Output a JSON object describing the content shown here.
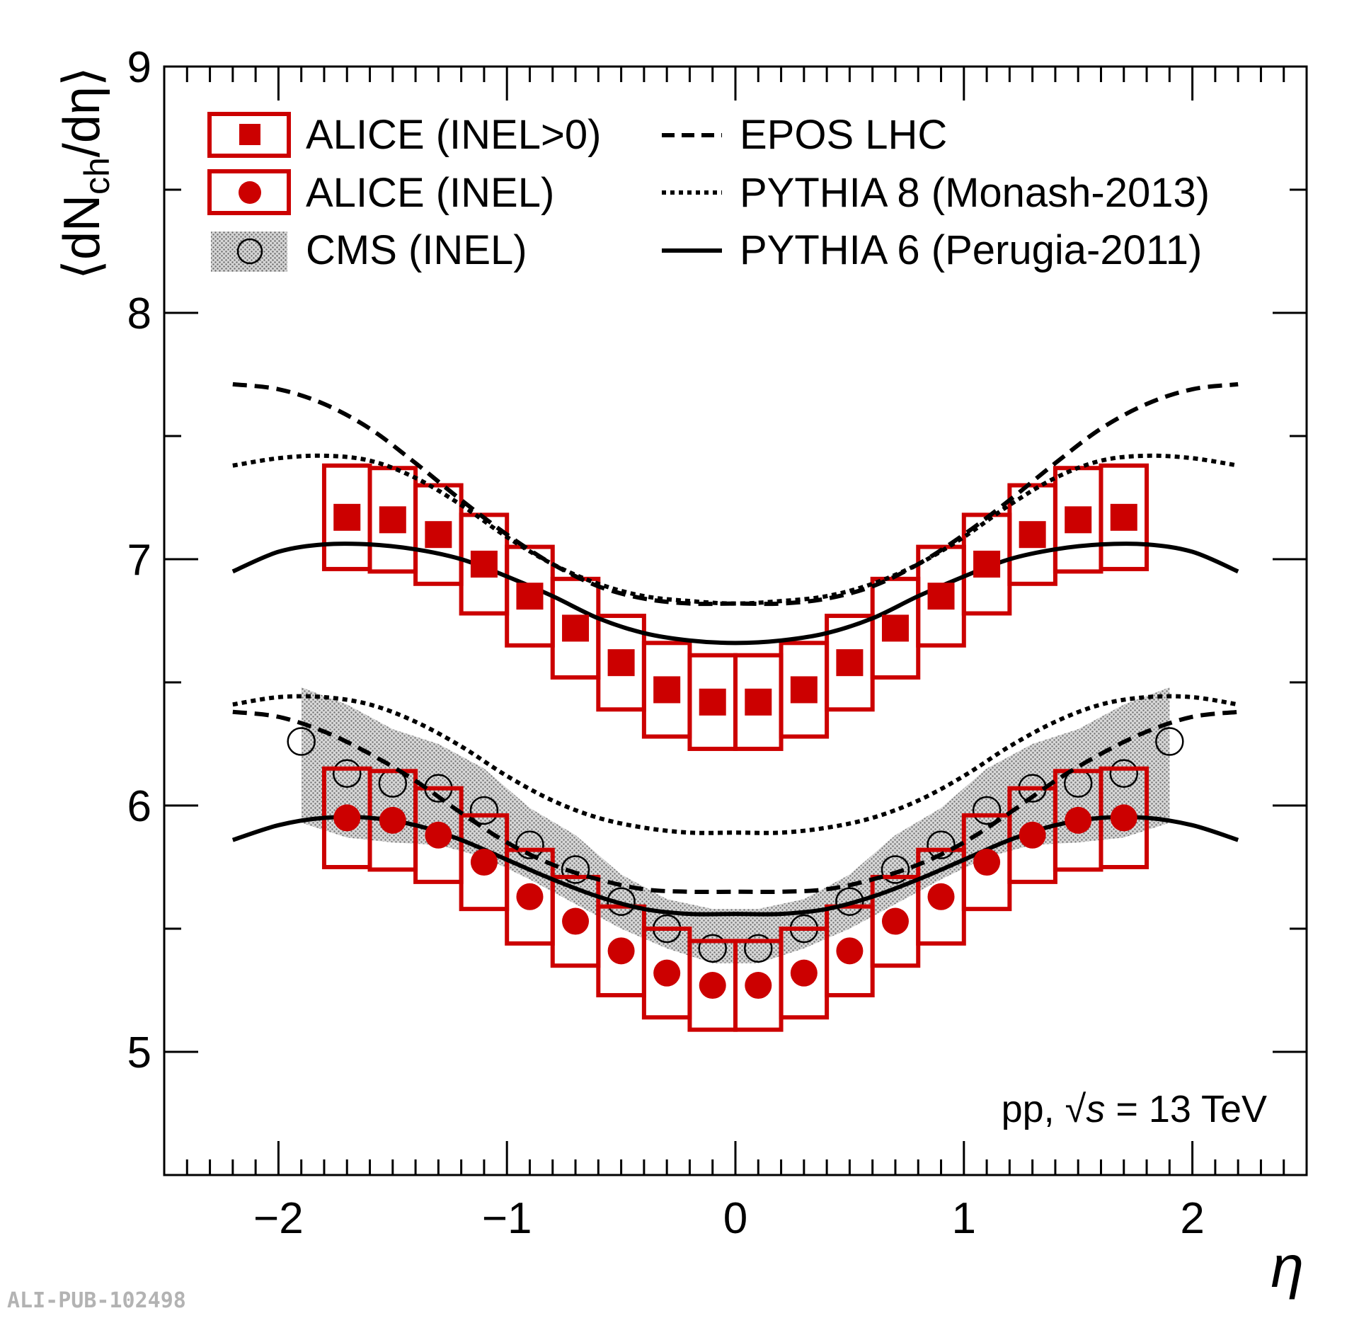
{
  "chart_data": {
    "type": "scatter",
    "title": "",
    "xlabel": "η",
    "ylabel_main": "⟨dN",
    "ylabel_sub": "ch",
    "ylabel_end": "/dη⟩",
    "xlim": [
      -2.5,
      2.5
    ],
    "ylim": [
      4.5,
      9
    ],
    "x_ticks": [
      -2,
      -1,
      0,
      1,
      2
    ],
    "x_tick_labels": [
      "−2",
      "−1",
      "0",
      "1",
      "2"
    ],
    "y_ticks": [
      5,
      6,
      7,
      8,
      9
    ],
    "y_tick_labels": [
      "5",
      "6",
      "7",
      "8",
      "9"
    ],
    "grid": false,
    "annotation": {
      "prefix": "pp, ",
      "sqrt_symbol": "√",
      "variable": "s",
      "suffix": " = 13 TeV"
    },
    "watermark": "ALI-PUB-102498",
    "legend": {
      "position": "top-left",
      "entries": [
        {
          "label": "ALICE (INEL>0)",
          "style": "red-square-box"
        },
        {
          "label": "ALICE (INEL)",
          "style": "red-circle-box"
        },
        {
          "label": "CMS (INEL)",
          "style": "open-circle-band"
        },
        {
          "label": "EPOS LHC",
          "style": "dashed"
        },
        {
          "label": "PYTHIA 8 (Monash-2013)",
          "style": "dotted"
        },
        {
          "label": "PYTHIA 6 (Perugia-2011)",
          "style": "solid"
        }
      ]
    },
    "colors": {
      "alice": "#cc0000",
      "model": "#000000",
      "cms_band": "#9a9a9a"
    },
    "series": [
      {
        "name": "ALICE (INEL>0)",
        "marker": "square",
        "bin_half_width": 0.1,
        "x": [
          -1.7,
          -1.5,
          -1.3,
          -1.1,
          -0.9,
          -0.7,
          -0.5,
          -0.3,
          -0.1,
          0.1,
          0.3,
          0.5,
          0.7,
          0.9,
          1.1,
          1.3,
          1.5,
          1.7
        ],
        "y": [
          7.17,
          7.16,
          7.1,
          6.98,
          6.85,
          6.72,
          6.58,
          6.47,
          6.42,
          6.42,
          6.47,
          6.58,
          6.72,
          6.85,
          6.98,
          7.1,
          7.16,
          7.17
        ],
        "sys": [
          0.21,
          0.21,
          0.2,
          0.2,
          0.2,
          0.2,
          0.19,
          0.19,
          0.19,
          0.19,
          0.19,
          0.19,
          0.2,
          0.2,
          0.2,
          0.2,
          0.21,
          0.21
        ]
      },
      {
        "name": "ALICE (INEL)",
        "marker": "circle",
        "bin_half_width": 0.1,
        "x": [
          -1.7,
          -1.5,
          -1.3,
          -1.1,
          -0.9,
          -0.7,
          -0.5,
          -0.3,
          -0.1,
          0.1,
          0.3,
          0.5,
          0.7,
          0.9,
          1.1,
          1.3,
          1.5,
          1.7
        ],
        "y": [
          5.95,
          5.94,
          5.88,
          5.77,
          5.63,
          5.53,
          5.41,
          5.32,
          5.27,
          5.27,
          5.32,
          5.41,
          5.53,
          5.63,
          5.77,
          5.88,
          5.94,
          5.95
        ],
        "sys": [
          0.2,
          0.2,
          0.19,
          0.19,
          0.19,
          0.18,
          0.18,
          0.18,
          0.18,
          0.18,
          0.18,
          0.18,
          0.18,
          0.19,
          0.19,
          0.19,
          0.2,
          0.2
        ]
      },
      {
        "name": "CMS (INEL)",
        "marker": "open-circle",
        "x": [
          -1.9,
          -1.7,
          -1.5,
          -1.3,
          -1.1,
          -0.9,
          -0.7,
          -0.5,
          -0.3,
          -0.1,
          0.1,
          0.3,
          0.5,
          0.7,
          0.9,
          1.1,
          1.3,
          1.5,
          1.7,
          1.9
        ],
        "y": [
          6.26,
          6.13,
          6.09,
          6.07,
          5.98,
          5.84,
          5.74,
          5.61,
          5.5,
          5.42,
          5.42,
          5.5,
          5.61,
          5.74,
          5.84,
          5.98,
          6.07,
          6.09,
          6.13,
          6.26
        ],
        "band_upper": [
          6.48,
          6.41,
          6.31,
          6.25,
          6.15,
          5.99,
          5.88,
          5.72,
          5.62,
          5.58,
          5.58,
          5.62,
          5.72,
          5.88,
          5.99,
          6.15,
          6.25,
          6.31,
          6.41,
          6.48
        ],
        "band_lower": [
          5.93,
          5.87,
          5.85,
          5.84,
          5.79,
          5.7,
          5.6,
          5.5,
          5.42,
          5.36,
          5.36,
          5.42,
          5.5,
          5.6,
          5.7,
          5.79,
          5.84,
          5.85,
          5.87,
          5.93
        ]
      }
    ],
    "model_curves": [
      {
        "name": "EPOS LHC (INEL>0)",
        "style": "dashed",
        "x": [
          -2.2,
          -2.0,
          -1.8,
          -1.6,
          -1.4,
          -1.2,
          -1.0,
          -0.8,
          -0.6,
          -0.4,
          -0.2,
          0.0,
          0.2,
          0.4,
          0.6,
          0.8,
          1.0,
          1.2,
          1.4,
          1.6,
          1.8,
          2.0,
          2.2
        ],
        "y": [
          7.71,
          7.69,
          7.63,
          7.53,
          7.39,
          7.24,
          7.1,
          6.98,
          6.89,
          6.84,
          6.82,
          6.82,
          6.82,
          6.84,
          6.89,
          6.98,
          7.1,
          7.24,
          7.39,
          7.53,
          7.63,
          7.69,
          7.71
        ]
      },
      {
        "name": "PYTHIA 8 (INEL>0)",
        "style": "dotted",
        "x": [
          -2.2,
          -2.0,
          -1.8,
          -1.6,
          -1.4,
          -1.2,
          -1.0,
          -0.8,
          -0.6,
          -0.4,
          -0.2,
          0.0,
          0.2,
          0.4,
          0.6,
          0.8,
          1.0,
          1.2,
          1.4,
          1.6,
          1.8,
          2.0,
          2.2
        ],
        "y": [
          7.38,
          7.41,
          7.42,
          7.4,
          7.33,
          7.22,
          7.09,
          6.98,
          6.9,
          6.85,
          6.83,
          6.82,
          6.83,
          6.85,
          6.9,
          6.98,
          7.09,
          7.22,
          7.33,
          7.4,
          7.42,
          7.41,
          7.38
        ]
      },
      {
        "name": "PYTHIA 6 (INEL>0)",
        "style": "solid",
        "x": [
          -2.2,
          -2.0,
          -1.8,
          -1.6,
          -1.4,
          -1.2,
          -1.0,
          -0.8,
          -0.6,
          -0.4,
          -0.2,
          0.0,
          0.2,
          0.4,
          0.6,
          0.8,
          1.0,
          1.2,
          1.4,
          1.6,
          1.8,
          2.0,
          2.2
        ],
        "y": [
          6.95,
          7.03,
          7.06,
          7.06,
          7.04,
          7.0,
          6.93,
          6.85,
          6.76,
          6.7,
          6.67,
          6.66,
          6.67,
          6.7,
          6.76,
          6.85,
          6.93,
          7.0,
          7.04,
          7.06,
          7.06,
          7.03,
          6.95
        ]
      },
      {
        "name": "EPOS LHC (INEL)",
        "style": "dashed",
        "x": [
          -2.2,
          -2.0,
          -1.8,
          -1.6,
          -1.4,
          -1.2,
          -1.0,
          -0.8,
          -0.6,
          -0.4,
          -0.2,
          0.0,
          0.2,
          0.4,
          0.6,
          0.8,
          1.0,
          1.2,
          1.4,
          1.6,
          1.8,
          2.0,
          2.2
        ],
        "y": [
          6.38,
          6.36,
          6.3,
          6.21,
          6.1,
          5.97,
          5.85,
          5.76,
          5.7,
          5.66,
          5.65,
          5.65,
          5.65,
          5.66,
          5.7,
          5.76,
          5.85,
          5.97,
          6.1,
          6.21,
          6.3,
          6.36,
          6.38
        ]
      },
      {
        "name": "PYTHIA 8 (INEL)",
        "style": "dotted",
        "x": [
          -2.2,
          -2.0,
          -1.8,
          -1.6,
          -1.4,
          -1.2,
          -1.0,
          -0.8,
          -0.6,
          -0.4,
          -0.2,
          0.0,
          0.2,
          0.4,
          0.6,
          0.8,
          1.0,
          1.2,
          1.4,
          1.6,
          1.8,
          2.0,
          2.2
        ],
        "y": [
          6.41,
          6.44,
          6.44,
          6.41,
          6.34,
          6.24,
          6.12,
          6.02,
          5.95,
          5.91,
          5.89,
          5.89,
          5.89,
          5.91,
          5.95,
          6.02,
          6.12,
          6.24,
          6.34,
          6.41,
          6.44,
          6.44,
          6.41
        ]
      },
      {
        "name": "PYTHIA 6 (INEL)",
        "style": "solid",
        "x": [
          -2.2,
          -2.0,
          -1.8,
          -1.6,
          -1.4,
          -1.2,
          -1.0,
          -0.8,
          -0.6,
          -0.4,
          -0.2,
          0.0,
          0.2,
          0.4,
          0.6,
          0.8,
          1.0,
          1.2,
          1.4,
          1.6,
          1.8,
          2.0,
          2.2
        ],
        "y": [
          5.86,
          5.92,
          5.95,
          5.95,
          5.92,
          5.86,
          5.78,
          5.7,
          5.63,
          5.58,
          5.56,
          5.56,
          5.56,
          5.58,
          5.63,
          5.7,
          5.78,
          5.86,
          5.92,
          5.95,
          5.95,
          5.92,
          5.86
        ]
      }
    ]
  }
}
